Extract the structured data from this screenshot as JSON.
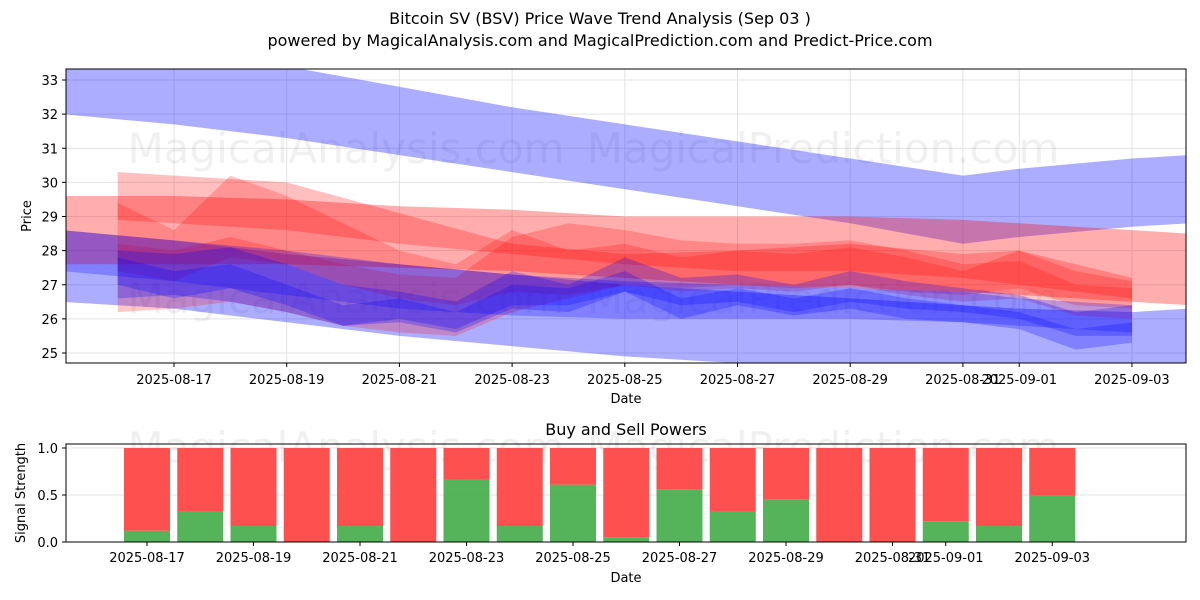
{
  "header": {
    "title": "Bitcoin SV (BSV) Price Wave Trend Analysis (Sep 03 )",
    "subtitle": "powered by MagicalAnalysis.com and MagicalPrediction.com and Predict-Price.com"
  },
  "watermarks": [
    "MagicalAnalysis.com",
    "MagicalPrediction.com"
  ],
  "colors": {
    "blue_band": "#0000ff",
    "red_band": "#ff0000",
    "buy": "#4caf50",
    "sell": "#ff4c4c",
    "grid": "#dddddd"
  },
  "chart_data": [
    {
      "type": "area",
      "title": "",
      "xlabel": "Date",
      "ylabel": "Price",
      "ylim": [
        24.7,
        33.3
      ],
      "yticks": [
        25,
        26,
        27,
        28,
        29,
        30,
        31,
        32,
        33
      ],
      "xlim_days": [
        "2025-08-14T20:00",
        "2025-09-04T12:00"
      ],
      "xticks": [
        "2025-08-17",
        "2025-08-19",
        "2025-08-21",
        "2025-08-23",
        "2025-08-25",
        "2025-08-27",
        "2025-08-29",
        "2025-08-31",
        "2025-09-01",
        "2025-09-03"
      ],
      "grid": true,
      "bands": [
        {
          "name": "upper-wide-blue",
          "color": "blue",
          "alpha": 0.32,
          "x": [
            "2025-08-15",
            "2025-08-17",
            "2025-08-19",
            "2025-08-21",
            "2025-08-23",
            "2025-08-25",
            "2025-08-27",
            "2025-08-29",
            "2025-08-31",
            "2025-09-01",
            "2025-09-03",
            "2025-09-04"
          ],
          "lo": [
            32.0,
            31.7,
            31.3,
            30.8,
            30.3,
            29.8,
            29.3,
            28.8,
            28.2,
            28.4,
            28.7,
            28.8
          ],
          "hi": [
            33.4,
            33.6,
            33.4,
            32.8,
            32.2,
            31.7,
            31.2,
            30.7,
            30.2,
            30.4,
            30.7,
            30.8
          ]
        },
        {
          "name": "lower-wide-blue",
          "color": "blue",
          "alpha": 0.32,
          "x": [
            "2025-08-15",
            "2025-08-17",
            "2025-08-19",
            "2025-08-21",
            "2025-08-23",
            "2025-08-25",
            "2025-08-27",
            "2025-08-29",
            "2025-08-31",
            "2025-09-01",
            "2025-09-03",
            "2025-09-04"
          ],
          "lo": [
            26.5,
            26.3,
            25.9,
            25.5,
            25.2,
            24.9,
            24.7,
            24.5,
            24.4,
            24.3,
            24.2,
            24.2
          ],
          "hi": [
            28.6,
            28.3,
            27.9,
            27.6,
            27.3,
            27.0,
            26.8,
            26.6,
            26.4,
            26.3,
            26.2,
            26.3
          ]
        },
        {
          "name": "wide-red",
          "color": "red",
          "alpha": 0.32,
          "x": [
            "2025-08-15",
            "2025-08-17",
            "2025-08-19",
            "2025-08-21",
            "2025-08-23",
            "2025-08-25",
            "2025-08-27",
            "2025-08-29",
            "2025-08-31",
            "2025-09-01",
            "2025-09-03",
            "2025-09-04"
          ],
          "lo": [
            27.6,
            27.6,
            27.6,
            27.5,
            27.4,
            27.2,
            27.0,
            26.9,
            26.8,
            26.7,
            26.5,
            26.4
          ],
          "hi": [
            29.6,
            29.6,
            29.5,
            29.3,
            29.2,
            29.0,
            29.0,
            29.0,
            28.9,
            28.8,
            28.6,
            28.5
          ]
        },
        {
          "name": "purple-overlap",
          "color": "red",
          "alpha": 0.25,
          "x": [
            "2025-08-16",
            "2025-08-17",
            "2025-08-19",
            "2025-08-21",
            "2025-08-23",
            "2025-08-25",
            "2025-08-27",
            "2025-08-29",
            "2025-08-31",
            "2025-09-01",
            "2025-09-03"
          ],
          "lo": [
            28.9,
            28.8,
            28.6,
            28.2,
            27.9,
            27.6,
            27.4,
            27.4,
            27.2,
            27.0,
            26.6
          ],
          "hi": [
            30.3,
            30.2,
            30.0,
            29.1,
            28.2,
            27.9,
            28.0,
            28.2,
            27.9,
            28.0,
            27.2
          ]
        },
        {
          "name": "red-wave-1",
          "color": "red",
          "alpha": 0.22,
          "x": [
            "2025-08-16",
            "2025-08-17",
            "2025-08-18",
            "2025-08-19",
            "2025-08-20",
            "2025-08-21",
            "2025-08-22",
            "2025-08-23",
            "2025-08-24",
            "2025-08-25",
            "2025-08-26",
            "2025-08-27",
            "2025-08-28",
            "2025-08-29",
            "2025-08-30",
            "2025-08-31",
            "2025-09-01",
            "2025-09-02",
            "2025-09-03"
          ],
          "lo": [
            27.4,
            27.1,
            27.8,
            27.6,
            27.0,
            26.6,
            26.4,
            26.8,
            26.7,
            27.0,
            26.9,
            27.0,
            26.9,
            27.0,
            26.8,
            26.7,
            26.9,
            26.4,
            26.3
          ],
          "hi": [
            29.4,
            28.6,
            30.2,
            29.6,
            28.8,
            28.0,
            27.6,
            28.6,
            28.0,
            28.2,
            27.8,
            28.0,
            27.9,
            28.1,
            27.8,
            27.4,
            28.0,
            27.4,
            27.1
          ]
        },
        {
          "name": "red-wave-2",
          "color": "red",
          "alpha": 0.22,
          "x": [
            "2025-08-16",
            "2025-08-17",
            "2025-08-18",
            "2025-08-19",
            "2025-08-20",
            "2025-08-21",
            "2025-08-22",
            "2025-08-23",
            "2025-08-24",
            "2025-08-25",
            "2025-08-26",
            "2025-08-27",
            "2025-08-28",
            "2025-08-29",
            "2025-08-30",
            "2025-08-31",
            "2025-09-01",
            "2025-09-02",
            "2025-09-03"
          ],
          "lo": [
            26.2,
            26.3,
            26.5,
            26.2,
            25.8,
            25.6,
            25.5,
            26.2,
            26.6,
            27.0,
            26.8,
            26.9,
            26.8,
            27.0,
            26.7,
            26.5,
            26.6,
            26.1,
            26.0
          ],
          "hi": [
            28.2,
            28.0,
            28.4,
            28.0,
            27.6,
            27.3,
            27.2,
            28.4,
            28.8,
            28.6,
            28.3,
            28.2,
            28.2,
            28.3,
            28.0,
            27.6,
            27.7,
            27.0,
            26.9
          ]
        },
        {
          "name": "blue-wave-1",
          "color": "blue",
          "alpha": 0.25,
          "x": [
            "2025-08-16",
            "2025-08-17",
            "2025-08-18",
            "2025-08-19",
            "2025-08-20",
            "2025-08-21",
            "2025-08-22",
            "2025-08-23",
            "2025-08-24",
            "2025-08-25",
            "2025-08-26",
            "2025-08-27",
            "2025-08-28",
            "2025-08-29",
            "2025-08-30",
            "2025-08-31",
            "2025-09-01",
            "2025-09-02",
            "2025-09-03"
          ],
          "lo": [
            26.6,
            26.7,
            26.5,
            26.2,
            25.8,
            25.9,
            25.6,
            26.3,
            26.2,
            26.8,
            26.4,
            26.5,
            26.2,
            26.5,
            26.3,
            26.2,
            26.0,
            25.5,
            25.5
          ],
          "hi": [
            28.0,
            27.9,
            28.1,
            27.6,
            27.0,
            26.8,
            26.5,
            27.4,
            27.0,
            27.8,
            27.2,
            27.3,
            27.0,
            27.4,
            27.1,
            26.9,
            26.7,
            26.2,
            26.4
          ]
        },
        {
          "name": "blue-wave-2",
          "color": "blue",
          "alpha": 0.25,
          "x": [
            "2025-08-16",
            "2025-08-17",
            "2025-08-18",
            "2025-08-19",
            "2025-08-20",
            "2025-08-21",
            "2025-08-22",
            "2025-08-23",
            "2025-08-24",
            "2025-08-25",
            "2025-08-26",
            "2025-08-27",
            "2025-08-28",
            "2025-08-29",
            "2025-08-30",
            "2025-08-31",
            "2025-09-01",
            "2025-09-02",
            "2025-09-03"
          ],
          "lo": [
            27.0,
            26.6,
            26.9,
            26.4,
            25.8,
            26.0,
            25.7,
            26.4,
            26.4,
            26.8,
            26.0,
            26.4,
            26.1,
            26.3,
            26.0,
            25.9,
            25.7,
            25.1,
            25.3
          ],
          "hi": [
            27.8,
            27.4,
            27.6,
            27.0,
            26.4,
            26.6,
            26.2,
            27.0,
            26.9,
            27.4,
            26.6,
            26.9,
            26.6,
            26.9,
            26.6,
            26.4,
            26.2,
            25.7,
            25.9
          ]
        },
        {
          "name": "purple-trend",
          "color": "blue",
          "alpha": 0.25,
          "x": [
            "2025-08-15",
            "2025-08-17",
            "2025-08-19",
            "2025-08-21",
            "2025-08-23",
            "2025-08-25",
            "2025-08-27",
            "2025-08-29",
            "2025-08-31",
            "2025-09-01",
            "2025-09-03"
          ],
          "lo": [
            27.4,
            27.1,
            26.7,
            26.3,
            26.1,
            26.0,
            26.0,
            26.0,
            25.9,
            25.8,
            25.6
          ],
          "hi": [
            28.6,
            28.3,
            28.0,
            27.6,
            27.3,
            27.1,
            27.0,
            26.9,
            26.8,
            26.6,
            26.4
          ]
        }
      ]
    },
    {
      "type": "bar",
      "title": "Buy and Sell Powers",
      "xlabel": "Date",
      "ylabel": "Signal Strength",
      "ylim": [
        0,
        1.05
      ],
      "yticks": [
        0.0,
        0.5,
        1.0
      ],
      "ytick_labels": [
        "0.0",
        "0.5",
        "1.0"
      ],
      "xticks": [
        "2025-08-17",
        "2025-08-19",
        "2025-08-21",
        "2025-08-23",
        "2025-08-25",
        "2025-08-27",
        "2025-08-29",
        "2025-08-31",
        "2025-09-01",
        "2025-09-03"
      ],
      "grid": true,
      "categories": [
        "2025-08-17",
        "2025-08-18",
        "2025-08-19",
        "2025-08-20",
        "2025-08-21",
        "2025-08-22",
        "2025-08-23",
        "2025-08-24",
        "2025-08-25",
        "2025-08-26",
        "2025-08-27",
        "2025-08-28",
        "2025-08-29",
        "2025-08-30",
        "2025-08-31",
        "2025-09-01",
        "2025-09-02",
        "2025-09-03"
      ],
      "series": [
        {
          "name": "Buy",
          "color": "green",
          "values": [
            0.12,
            0.33,
            0.17,
            0.0,
            0.17,
            0.0,
            0.67,
            0.17,
            0.61,
            0.05,
            0.56,
            0.33,
            0.45,
            0.0,
            0.0,
            0.22,
            0.17,
            0.5
          ]
        },
        {
          "name": "Sell",
          "color": "red",
          "values": [
            0.88,
            0.67,
            0.83,
            1.0,
            0.83,
            1.0,
            0.33,
            0.83,
            0.39,
            0.95,
            0.44,
            0.67,
            0.55,
            1.0,
            1.0,
            0.78,
            0.83,
            0.5
          ]
        }
      ]
    }
  ]
}
